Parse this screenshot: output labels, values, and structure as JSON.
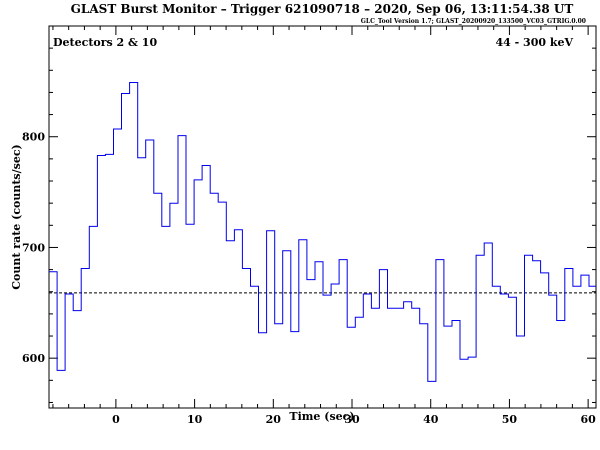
{
  "chart_data": {
    "type": "line",
    "step": true,
    "title": "GLAST Burst Monitor  –  Trigger 621090718  –  2020, Sep 06, 13:11:54.38 UT",
    "subtitle": "GLC_Tool Version 1.7; GLAST_20200920_133500_VC03_GTRIG.0.00",
    "annotation_left": "Detectors 2 & 10",
    "annotation_right": "44 - 300 keV",
    "xlabel": "Time (sec)",
    "ylabel": "Count rate (counts/sec)",
    "xlim": [
      -8.5,
      61
    ],
    "ylim": [
      555,
      900
    ],
    "x_ticks": [
      0,
      10,
      20,
      30,
      40,
      50,
      60
    ],
    "y_ticks": [
      600,
      700,
      800
    ],
    "background_level": 659,
    "line_color": "#0000ee",
    "bin_width": 1.024,
    "bin_start": -8.5,
    "values": [
      678,
      589,
      658,
      643,
      681,
      719,
      783,
      784,
      807,
      839,
      849,
      781,
      797,
      749,
      719,
      740,
      801,
      721,
      761,
      774,
      749,
      741,
      706,
      716,
      681,
      665,
      623,
      715,
      631,
      697,
      624,
      707,
      671,
      687,
      657,
      667,
      689,
      628,
      637,
      658,
      645,
      680,
      645,
      645,
      651,
      645,
      631,
      579,
      689,
      629,
      634,
      599,
      601,
      693,
      704,
      665,
      658,
      655,
      620,
      693,
      688,
      677,
      657,
      634,
      681,
      665,
      675,
      665,
      666
    ]
  }
}
